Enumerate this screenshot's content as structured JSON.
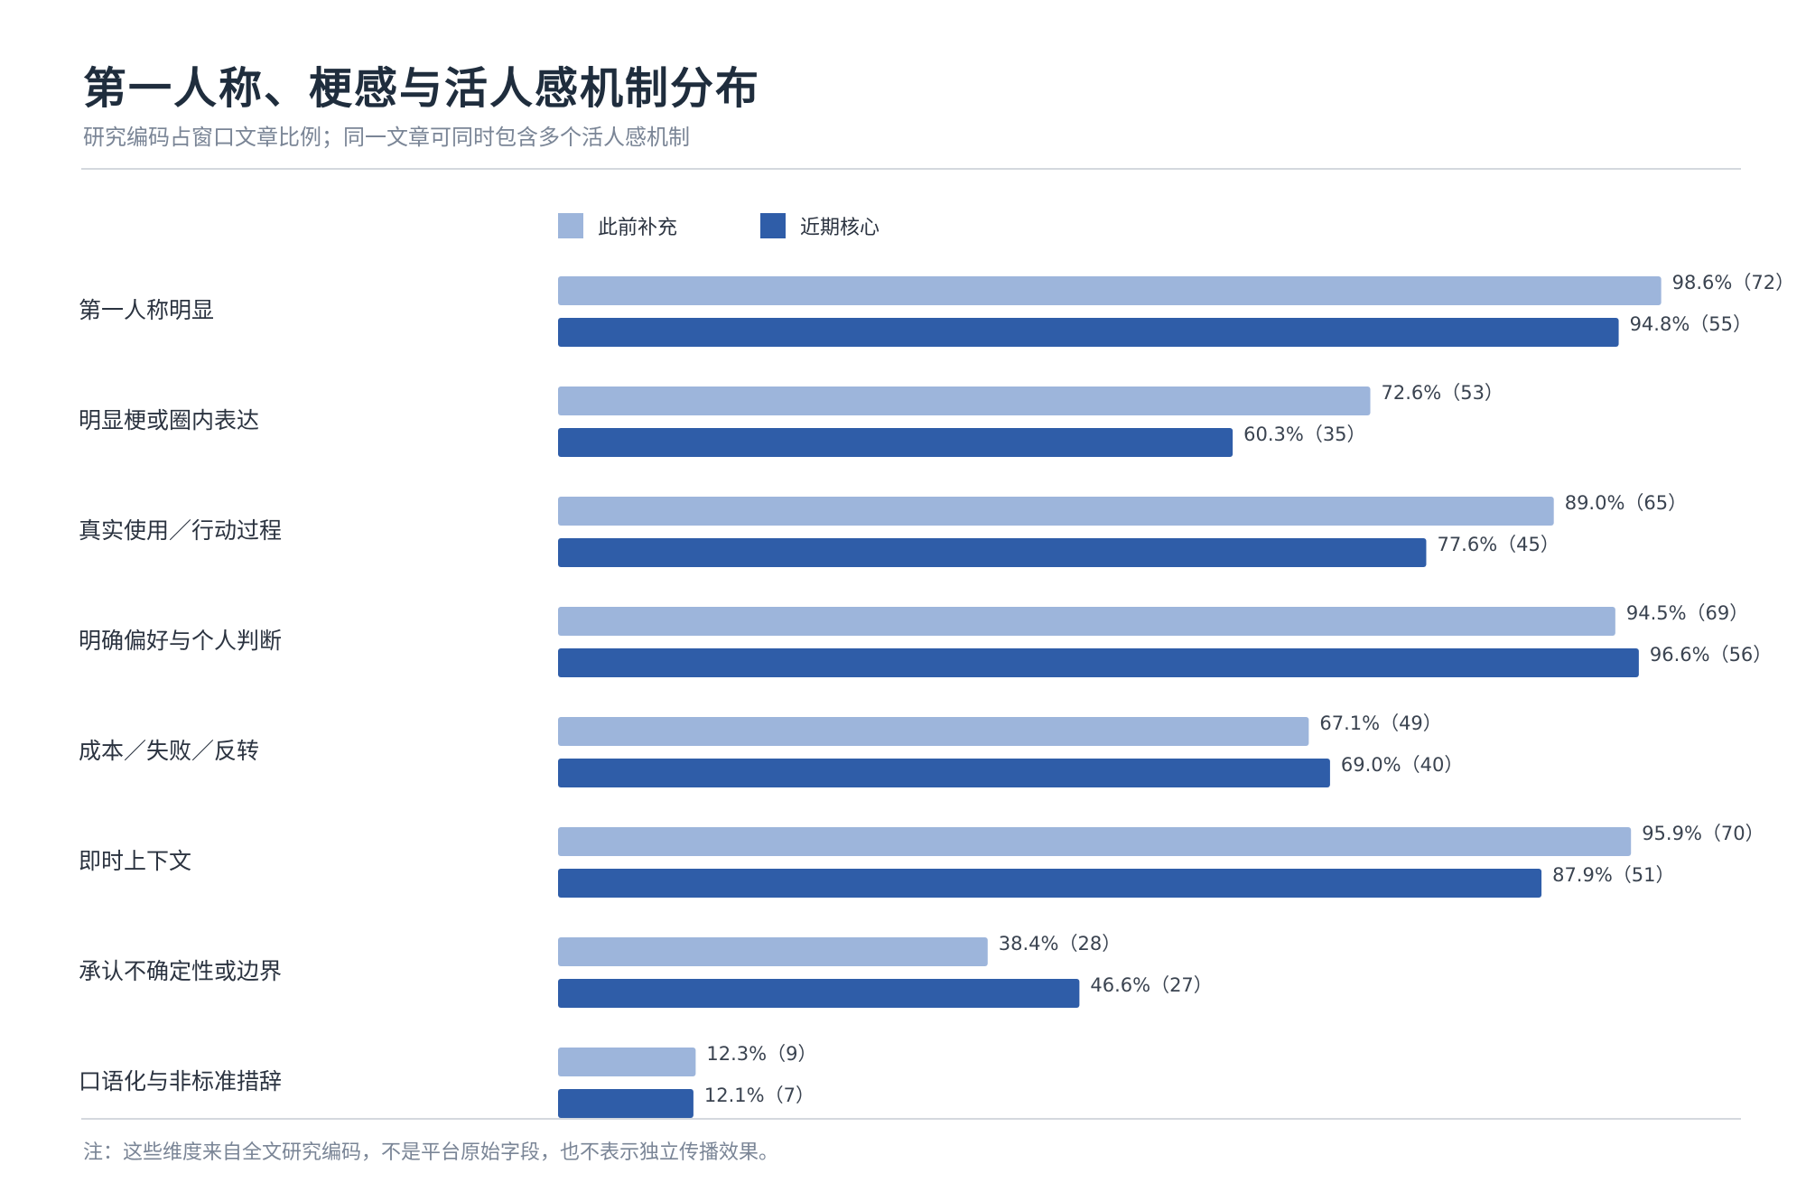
{
  "header": {
    "title": "第一人称、梗感与活人感机制分布",
    "subtitle": "研究编码占窗口文章比例；同一文章可同时包含多个活人感机制"
  },
  "footer": {
    "note": "注：这些维度来自全文研究编码，不是平台原始字段，也不表示独立传播效果。"
  },
  "colors": {
    "prev": "#9db5db",
    "recent": "#2f5da8"
  },
  "chart_data": {
    "type": "bar",
    "orientation": "horizontal",
    "title": "第一人称、梗感与活人感机制分布",
    "subtitle": "研究编码占窗口文章比例；同一文章可同时包含多个活人感机制",
    "legend_position": "top",
    "grid": false,
    "xlim": [
      0,
      100
    ],
    "categories": [
      "第一人称明显",
      "明显梗或圈内表达",
      "真实使用／行动过程",
      "明确偏好与个人判断",
      "成本／失败／反转",
      "即时上下文",
      "承认不确定性或边界",
      "口语化与非标准措辞"
    ],
    "series": [
      {
        "name": "此前补充",
        "values": [
          98.6,
          72.6,
          89.0,
          94.5,
          67.1,
          95.9,
          38.4,
          12.3
        ],
        "labels": [
          "98.6%（72）",
          "72.6%（53）",
          "89.0%（65）",
          "94.5%（69）",
          "67.1%（49）",
          "95.9%（70）",
          "38.4%（28）",
          "12.3%（9）"
        ]
      },
      {
        "name": "近期核心",
        "values": [
          94.8,
          60.3,
          77.6,
          96.6,
          69.0,
          87.9,
          46.6,
          12.1
        ],
        "labels": [
          "94.8%（55）",
          "60.3%（35）",
          "77.6%（45）",
          "96.6%（56）",
          "69.0%（40）",
          "87.9%（51）",
          "46.6%（27）",
          "12.1%（7）"
        ]
      }
    ]
  }
}
